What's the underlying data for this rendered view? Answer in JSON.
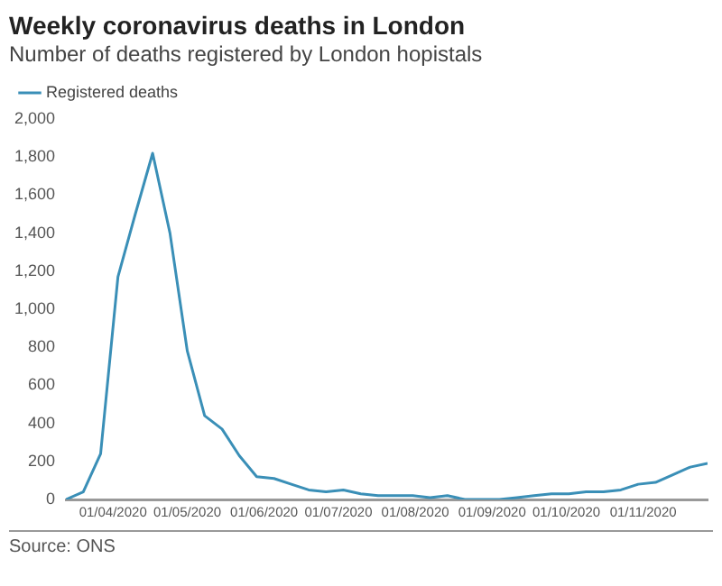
{
  "chart_data": {
    "type": "line",
    "title": "Weekly coronavirus deaths in London",
    "subtitle": "Number of deaths registered by London hopistals",
    "x": [
      "2020-03-13",
      "2020-03-20",
      "2020-03-27",
      "2020-04-03",
      "2020-04-10",
      "2020-04-17",
      "2020-04-24",
      "2020-05-01",
      "2020-05-08",
      "2020-05-15",
      "2020-05-22",
      "2020-05-29",
      "2020-06-05",
      "2020-06-12",
      "2020-06-19",
      "2020-06-26",
      "2020-07-03",
      "2020-07-10",
      "2020-07-17",
      "2020-07-24",
      "2020-07-31",
      "2020-08-07",
      "2020-08-14",
      "2020-08-21",
      "2020-08-28",
      "2020-09-04",
      "2020-09-11",
      "2020-09-18",
      "2020-09-25",
      "2020-10-02",
      "2020-10-09",
      "2020-10-16",
      "2020-10-23",
      "2020-10-30",
      "2020-11-06",
      "2020-11-13",
      "2020-11-20",
      "2020-11-27"
    ],
    "series": [
      {
        "name": "Registered deaths",
        "color": "#3a8fb7",
        "values": [
          0,
          40,
          240,
          1170,
          1500,
          1820,
          1400,
          780,
          440,
          370,
          230,
          120,
          110,
          80,
          50,
          40,
          50,
          30,
          20,
          20,
          20,
          10,
          20,
          0,
          0,
          0,
          10,
          20,
          30,
          30,
          40,
          40,
          50,
          80,
          90,
          130,
          170,
          190
        ]
      }
    ],
    "xlim": [
      "2020-03-13",
      "2020-11-27"
    ],
    "xticks": [
      {
        "value": "2020-04-01",
        "label": "01/04/2020"
      },
      {
        "value": "2020-05-01",
        "label": "01/05/2020"
      },
      {
        "value": "2020-06-01",
        "label": "01/06/2020"
      },
      {
        "value": "2020-07-01",
        "label": "01/07/2020"
      },
      {
        "value": "2020-08-01",
        "label": "01/08/2020"
      },
      {
        "value": "2020-09-01",
        "label": "01/09/2020"
      },
      {
        "value": "2020-10-01",
        "label": "01/10/2020"
      },
      {
        "value": "2020-11-01",
        "label": "01/11/2020"
      }
    ],
    "ylim": [
      0,
      2000
    ],
    "yticks": [
      {
        "value": 0,
        "label": "0"
      },
      {
        "value": 200,
        "label": "200"
      },
      {
        "value": 400,
        "label": "400"
      },
      {
        "value": 600,
        "label": "600"
      },
      {
        "value": 800,
        "label": "800"
      },
      {
        "value": 1000,
        "label": "1,000"
      },
      {
        "value": 1200,
        "label": "1,200"
      },
      {
        "value": 1400,
        "label": "1,400"
      },
      {
        "value": 1600,
        "label": "1,600"
      },
      {
        "value": 1800,
        "label": "1,800"
      },
      {
        "value": 2000,
        "label": "2,000"
      }
    ],
    "grid": false,
    "legend": "top left",
    "marker": "none",
    "line_style": "solid",
    "annotations": [
      "Source: ONS"
    ]
  }
}
